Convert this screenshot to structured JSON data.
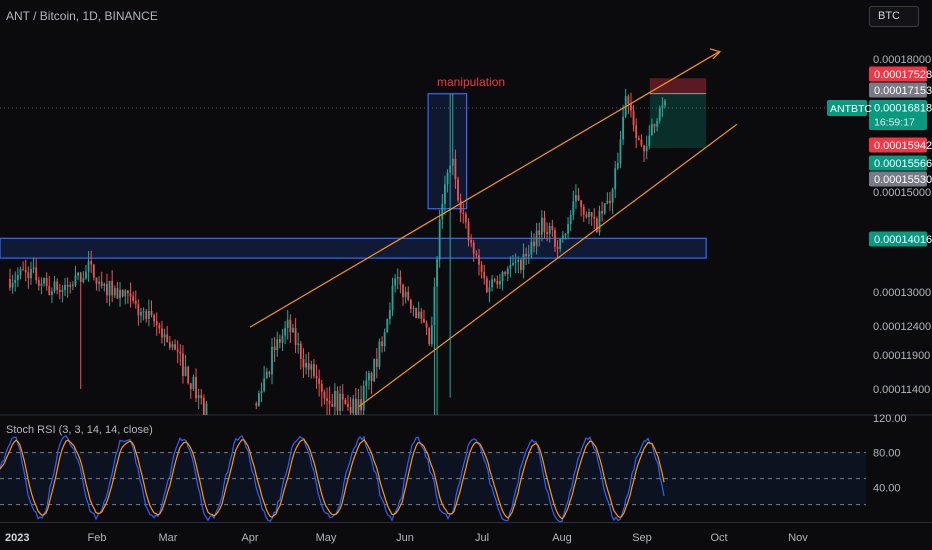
{
  "header": {
    "title": "ANT / Bitcoin, 1D, BINANCE",
    "currency_button": "BTC"
  },
  "indicator": {
    "title": "Stoch RSI (3, 3, 14, 14, close)",
    "axis_labels": [
      "120.00",
      "80.00",
      "40.00"
    ]
  },
  "annotation": {
    "text": "manipulation",
    "color": "#f23645"
  },
  "symbol_badge": "ANTBTC",
  "countdown": "16:59:17",
  "colors": {
    "up": "#26a69a",
    "down": "#ef5350",
    "k_line": "#2962ff",
    "d_line": "#ff9800",
    "zone": "#2f6bff",
    "trend": "#f7931a"
  },
  "chart_data": {
    "type": "candlestick",
    "symbol": "ANT / Bitcoin",
    "interval": "1D",
    "exchange": "BINANCE",
    "x_ticks": [
      "2023",
      "Feb",
      "Mar",
      "Apr",
      "May",
      "Jun",
      "Jul",
      "Aug",
      "Sep",
      "Oct",
      "Nov"
    ],
    "y_ticks": [
      "0.00018000",
      "0.00015000",
      "0.00013000",
      "0.00012400",
      "0.00011900",
      "0.00011400"
    ],
    "ylim": [
      0.000111,
      0.000186
    ],
    "current_price": "0.00016818",
    "price_labels": [
      {
        "value": "0.00017528",
        "color": "#f23645"
      },
      {
        "value": "0.00017153",
        "color": "#787b86"
      },
      {
        "value": "0.00016818",
        "color": "#089981"
      },
      {
        "value": "0.00015942",
        "color": "#f23645"
      },
      {
        "value": "0.00015566",
        "color": "#089981"
      },
      {
        "value": "0.00015530",
        "color": "#787b86"
      },
      {
        "value": "0.00014016",
        "color": "#089981"
      }
    ],
    "support_zone": {
      "start": "2023-01-01",
      "end": "2023-09-26",
      "low": 0.0001365,
      "high": 0.0001403
    },
    "manipulation_box": {
      "start": "2023-06-10",
      "end": "2023-06-25",
      "low": 0.0001465,
      "high": 0.0001715
    },
    "trade_position": {
      "start": "2023-09-04",
      "end": "2023-09-26",
      "stop": 0.00017528,
      "entry": 0.00017153,
      "target": 0.00015942
    },
    "channel": {
      "upper": [
        {
          "date": "2023-04-01",
          "value": 0.0001238
        },
        {
          "date": "2023-10-01",
          "value": 0.0001818
        }
      ],
      "lower": [
        {
          "date": "2023-05-14",
          "value": 0.000112
        },
        {
          "date": "2023-10-08",
          "value": 0.0001645
        }
      ]
    },
    "stoch_rsi": {
      "ylim": [
        0,
        120
      ],
      "levels": [
        80,
        50,
        20
      ]
    },
    "price_series": [
      {
        "date": "2023-01-01",
        "value": 0.0001325
      },
      {
        "date": "2023-01-08",
        "value": 0.000134
      },
      {
        "date": "2023-01-15",
        "value": 0.0001305
      },
      {
        "date": "2023-01-22",
        "value": 0.000131
      },
      {
        "date": "2023-01-29",
        "value": 0.0001345
      },
      {
        "date": "2023-02-05",
        "value": 0.000131
      },
      {
        "date": "2023-02-12",
        "value": 0.000129
      },
      {
        "date": "2023-02-19",
        "value": 0.000126
      },
      {
        "date": "2023-02-26",
        "value": 0.0001235
      },
      {
        "date": "2023-03-05",
        "value": 0.0001185
      },
      {
        "date": "2023-03-12",
        "value": 0.0001135
      },
      {
        "date": "2023-03-15",
        "value": 0.000111
      },
      {
        "date": "2023-04-03",
        "value": 0.0001115
      },
      {
        "date": "2023-04-10",
        "value": 0.0001195
      },
      {
        "date": "2023-04-16",
        "value": 0.000124
      },
      {
        "date": "2023-04-23",
        "value": 0.0001175
      },
      {
        "date": "2023-04-30",
        "value": 0.0001145
      },
      {
        "date": "2023-05-07",
        "value": 0.000112
      },
      {
        "date": "2023-05-14",
        "value": 0.000112
      },
      {
        "date": "2023-05-21",
        "value": 0.000118
      },
      {
        "date": "2023-05-28",
        "value": 0.000132
      },
      {
        "date": "2023-06-04",
        "value": 0.000128
      },
      {
        "date": "2023-06-11",
        "value": 0.0001205
      },
      {
        "date": "2023-06-15",
        "value": 0.000146
      },
      {
        "date": "2023-06-19",
        "value": 0.0001575
      },
      {
        "date": "2023-06-22",
        "value": 0.000149
      },
      {
        "date": "2023-06-26",
        "value": 0.0001395
      },
      {
        "date": "2023-07-03",
        "value": 0.000131
      },
      {
        "date": "2023-07-10",
        "value": 0.0001345
      },
      {
        "date": "2023-07-17",
        "value": 0.000136
      },
      {
        "date": "2023-07-24",
        "value": 0.0001435
      },
      {
        "date": "2023-07-31",
        "value": 0.0001385
      },
      {
        "date": "2023-08-07",
        "value": 0.000149
      },
      {
        "date": "2023-08-14",
        "value": 0.0001425
      },
      {
        "date": "2023-08-21",
        "value": 0.0001505
      },
      {
        "date": "2023-08-26",
        "value": 0.000172
      },
      {
        "date": "2023-08-30",
        "value": 0.000163
      },
      {
        "date": "2023-09-02",
        "value": 0.000157
      },
      {
        "date": "2023-09-06",
        "value": 0.0001665
      },
      {
        "date": "2023-09-10",
        "value": 0.00016818
      }
    ]
  }
}
